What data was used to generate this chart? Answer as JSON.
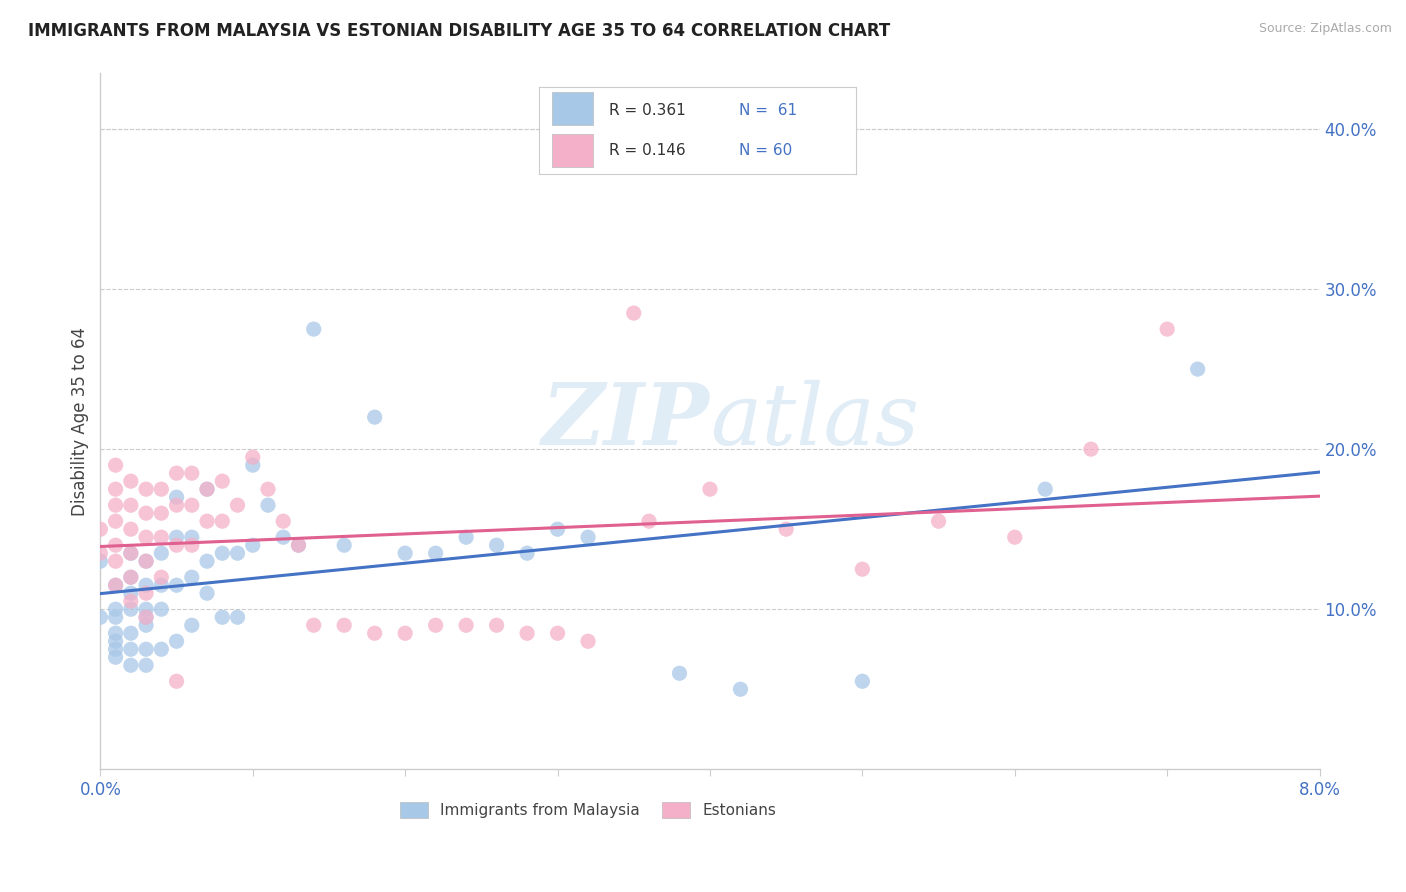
{
  "title": "IMMIGRANTS FROM MALAYSIA VS ESTONIAN DISABILITY AGE 35 TO 64 CORRELATION CHART",
  "source": "Source: ZipAtlas.com",
  "ylabel": "Disability Age 35 to 64",
  "ylabel_right_ticks": [
    "10.0%",
    "20.0%",
    "30.0%",
    "40.0%"
  ],
  "ylabel_right_vals": [
    0.1,
    0.2,
    0.3,
    0.4
  ],
  "xlim": [
    0.0,
    0.08
  ],
  "ylim": [
    0.0,
    0.435
  ],
  "legend_r1": "R = 0.361",
  "legend_n1": "N =  61",
  "legend_r2": "R = 0.146",
  "legend_n2": "N = 60",
  "color_blue": "#a8c8e8",
  "color_pink": "#f4b0c8",
  "color_blue_line": "#4472c4",
  "color_pink_line": "#e06090",
  "color_title": "#222222",
  "color_source": "#aaaaaa",
  "color_axis": "#4472c4",
  "color_grid": "#cccccc",
  "watermark_color": "#cce0f0",
  "watermark_alpha": 0.6,
  "blue_x": [
    0.0,
    0.0,
    0.001,
    0.001,
    0.001,
    0.001,
    0.001,
    0.001,
    0.001,
    0.002,
    0.002,
    0.002,
    0.002,
    0.002,
    0.002,
    0.002,
    0.003,
    0.003,
    0.003,
    0.003,
    0.003,
    0.003,
    0.003,
    0.004,
    0.004,
    0.004,
    0.004,
    0.005,
    0.005,
    0.005,
    0.005,
    0.006,
    0.006,
    0.006,
    0.007,
    0.007,
    0.007,
    0.008,
    0.008,
    0.009,
    0.009,
    0.01,
    0.01,
    0.011,
    0.012,
    0.013,
    0.014,
    0.016,
    0.018,
    0.02,
    0.022,
    0.024,
    0.026,
    0.028,
    0.03,
    0.032,
    0.038,
    0.042,
    0.05,
    0.062,
    0.072
  ],
  "blue_y": [
    0.13,
    0.095,
    0.115,
    0.1,
    0.095,
    0.085,
    0.08,
    0.075,
    0.07,
    0.135,
    0.12,
    0.11,
    0.1,
    0.085,
    0.075,
    0.065,
    0.13,
    0.115,
    0.1,
    0.095,
    0.09,
    0.075,
    0.065,
    0.135,
    0.115,
    0.1,
    0.075,
    0.17,
    0.145,
    0.115,
    0.08,
    0.145,
    0.12,
    0.09,
    0.175,
    0.13,
    0.11,
    0.135,
    0.095,
    0.135,
    0.095,
    0.19,
    0.14,
    0.165,
    0.145,
    0.14,
    0.275,
    0.14,
    0.22,
    0.135,
    0.135,
    0.145,
    0.14,
    0.135,
    0.15,
    0.145,
    0.06,
    0.05,
    0.055,
    0.175,
    0.25
  ],
  "pink_x": [
    0.0,
    0.0,
    0.001,
    0.001,
    0.001,
    0.001,
    0.001,
    0.001,
    0.001,
    0.002,
    0.002,
    0.002,
    0.002,
    0.002,
    0.002,
    0.003,
    0.003,
    0.003,
    0.003,
    0.003,
    0.003,
    0.004,
    0.004,
    0.004,
    0.004,
    0.005,
    0.005,
    0.005,
    0.006,
    0.006,
    0.006,
    0.007,
    0.007,
    0.008,
    0.008,
    0.009,
    0.01,
    0.011,
    0.012,
    0.013,
    0.014,
    0.016,
    0.018,
    0.02,
    0.022,
    0.024,
    0.026,
    0.028,
    0.03,
    0.032,
    0.036,
    0.04,
    0.045,
    0.05,
    0.055,
    0.06,
    0.065,
    0.07,
    0.005,
    0.035
  ],
  "pink_y": [
    0.15,
    0.135,
    0.19,
    0.175,
    0.165,
    0.155,
    0.14,
    0.13,
    0.115,
    0.18,
    0.165,
    0.15,
    0.135,
    0.12,
    0.105,
    0.175,
    0.16,
    0.145,
    0.13,
    0.11,
    0.095,
    0.175,
    0.16,
    0.145,
    0.12,
    0.185,
    0.165,
    0.14,
    0.185,
    0.165,
    0.14,
    0.175,
    0.155,
    0.18,
    0.155,
    0.165,
    0.195,
    0.175,
    0.155,
    0.14,
    0.09,
    0.09,
    0.085,
    0.085,
    0.09,
    0.09,
    0.09,
    0.085,
    0.085,
    0.08,
    0.155,
    0.175,
    0.15,
    0.125,
    0.155,
    0.145,
    0.2,
    0.275,
    0.055,
    0.285
  ]
}
